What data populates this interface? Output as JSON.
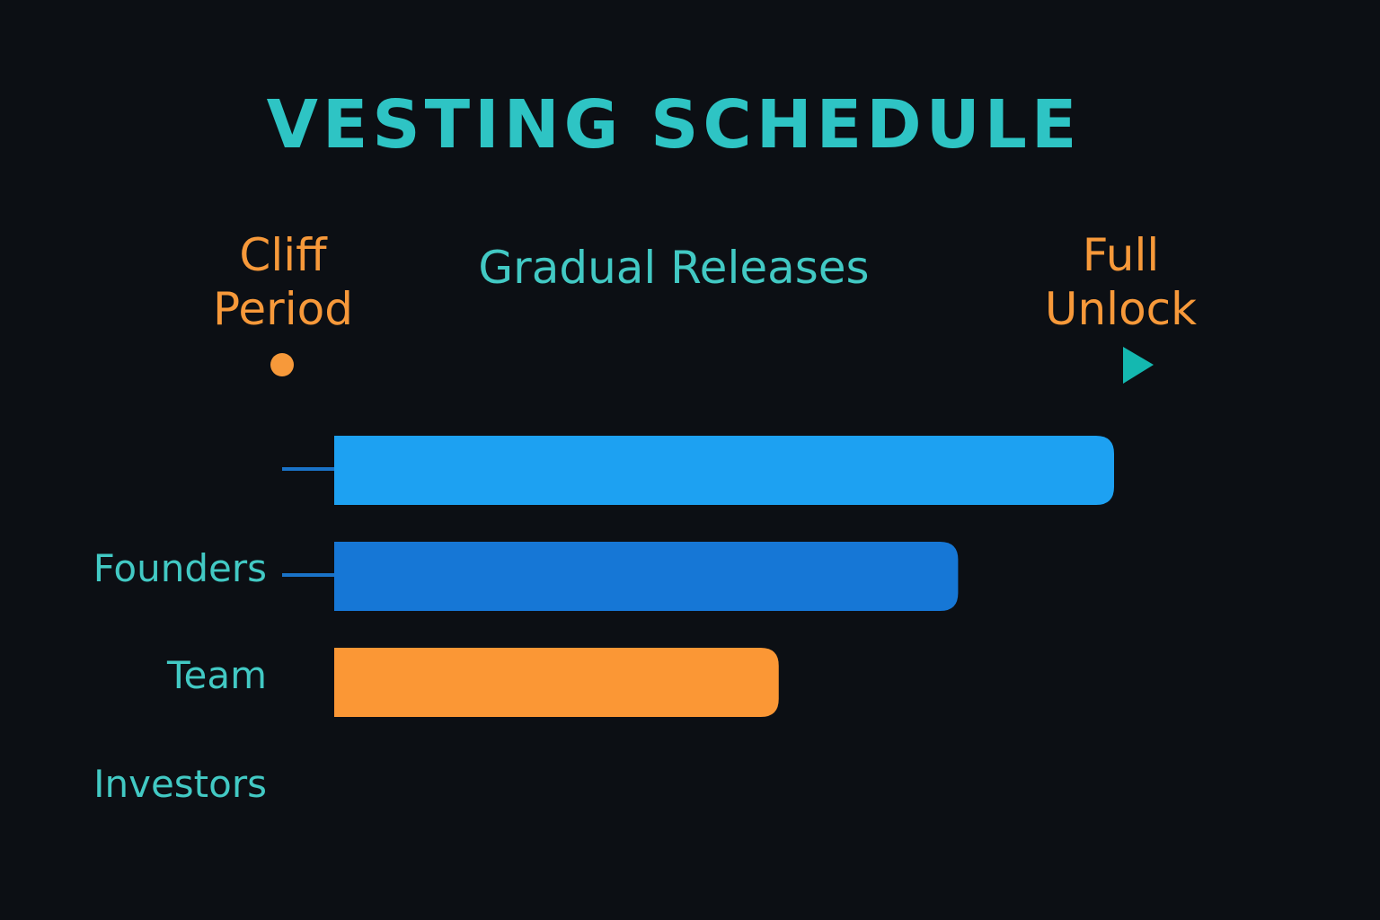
{
  "title": "VESTING SCHEDULE",
  "phases": {
    "cliff": {
      "line1": "Cliff",
      "line2": "Period"
    },
    "gradual": {
      "label": "Gradual Releases"
    },
    "full": {
      "line1": "Full",
      "line2": "Unlock"
    }
  },
  "rows": [
    {
      "label": "Founders"
    },
    {
      "label": "Team"
    },
    {
      "label": "Investors"
    }
  ],
  "bars": [
    {
      "progress": 1.0,
      "color": "#1da1f2"
    },
    {
      "progress": 0.8,
      "color": "#1677d6"
    },
    {
      "progress": 0.57,
      "color": "#fb9735"
    }
  ],
  "colors": {
    "background": "#0c0f14",
    "accent_teal": "#2ec4c4",
    "accent_orange": "#f7993a",
    "axis_blue": "#1a73c8"
  }
}
